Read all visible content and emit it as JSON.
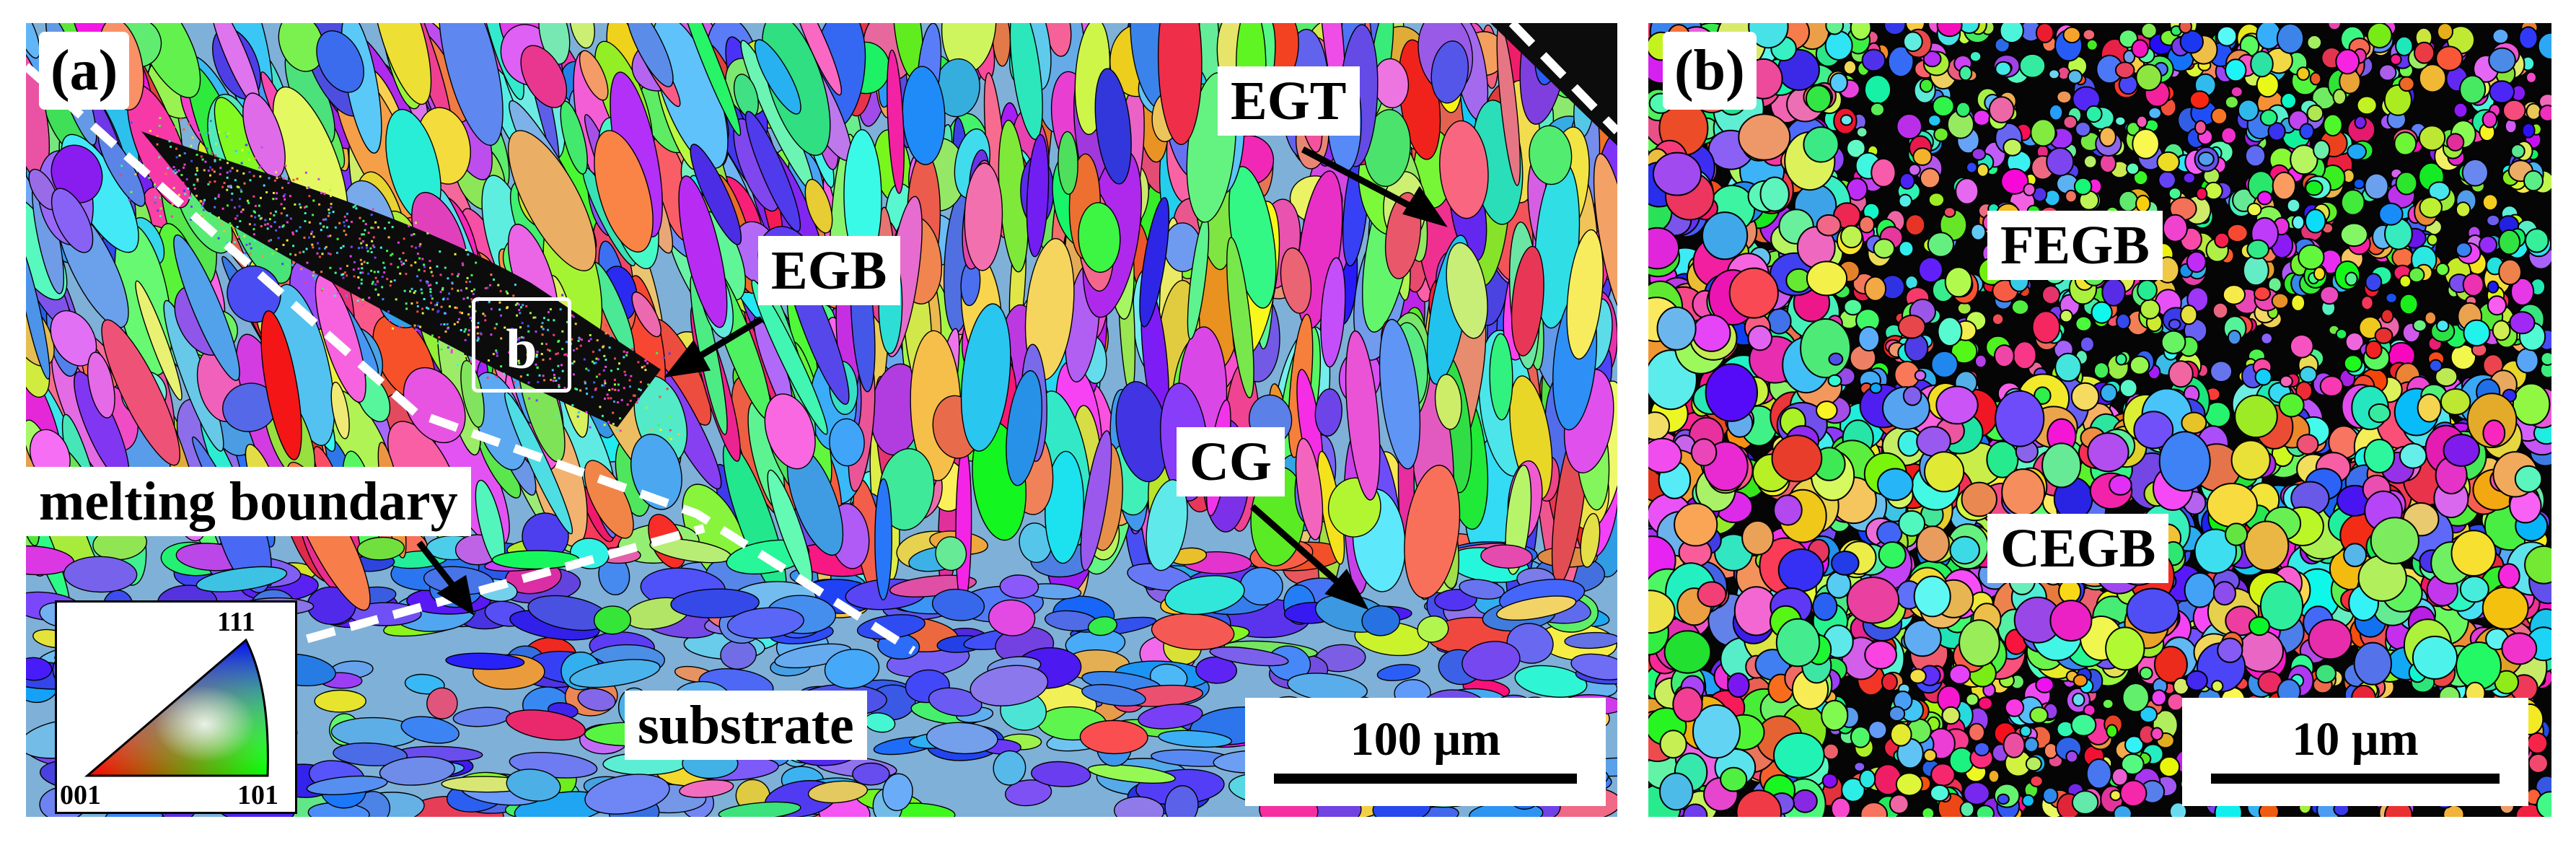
{
  "figure": {
    "panel_a": {
      "letter": "(a)",
      "callouts": {
        "egt": "EGT",
        "egb": "EGB",
        "cg": "CG",
        "melting_boundary": "melting boundary",
        "substrate": "substrate"
      },
      "inset_letter": "b",
      "scalebar_label": "100 µm",
      "ipf_legend": {
        "top": "111",
        "left": "001",
        "right": "101"
      }
    },
    "panel_b": {
      "letter": "(b)",
      "callouts": {
        "fegb": "FEGB",
        "cegb": "CEGB"
      },
      "scalebar_label": "10 µm"
    }
  },
  "colors": {
    "background": "#ffffff",
    "grain_boundary": "#000000",
    "dashed_line": "#ffffff",
    "label_bg": "#ffffff",
    "label_text": "#000000",
    "ipf_red": "#ff0000",
    "ipf_green": "#00ff00",
    "ipf_blue": "#0000ff"
  }
}
